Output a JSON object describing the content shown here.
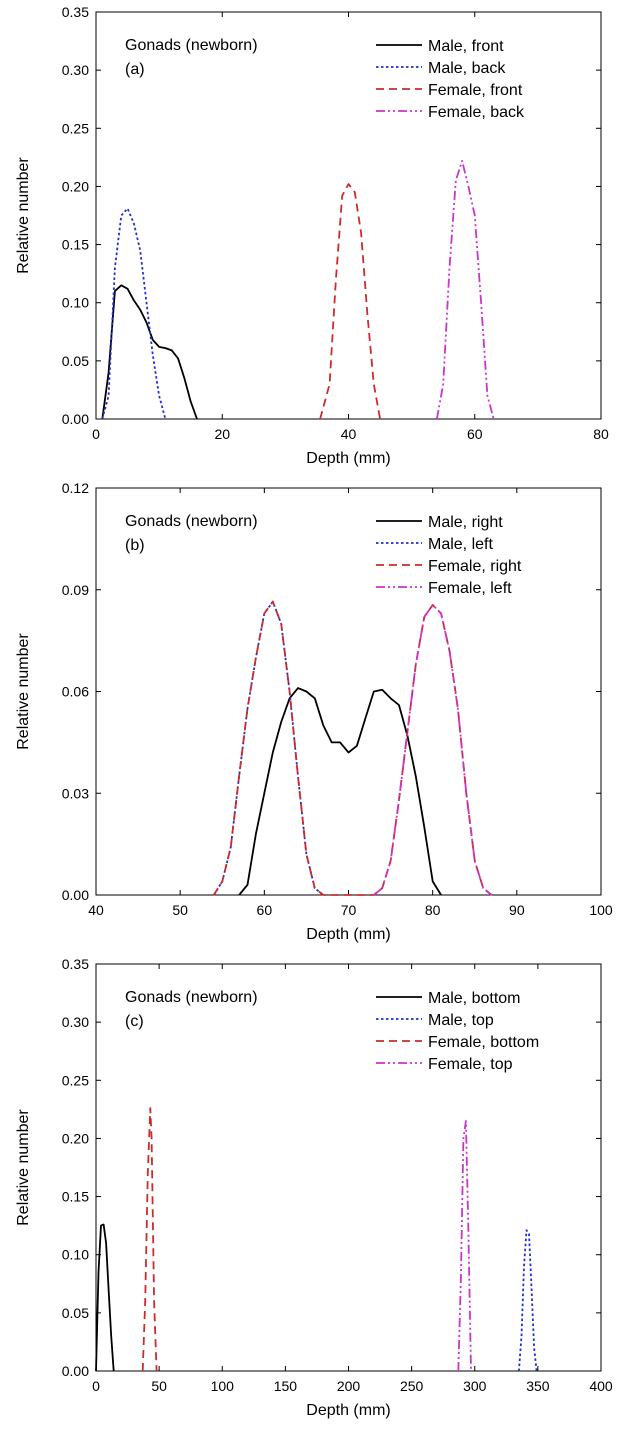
{
  "chart_data": [
    {
      "type": "line",
      "xlabel": "Depth (mm)",
      "ylabel": "Relative number",
      "xlim": [
        0,
        80
      ],
      "ylim": [
        0,
        0.35
      ],
      "xticks": [
        "0",
        "20",
        "40",
        "60",
        "80"
      ],
      "yticks": [
        "0.00",
        "0.05",
        "0.10",
        "0.15",
        "0.20",
        "0.25",
        "0.30",
        "0.35"
      ],
      "annotation_title": "Gonads (newborn)",
      "annotation_panel": "(a)",
      "legend_position": "top-right",
      "series": [
        {
          "name": "Male, front",
          "color": "#000000",
          "dash": "solid",
          "x": [
            1,
            2,
            3,
            4,
            5,
            6,
            7,
            8,
            9,
            10,
            11,
            12,
            13,
            14,
            15,
            16
          ],
          "y": [
            0.0,
            0.04,
            0.11,
            0.115,
            0.112,
            0.102,
            0.094,
            0.083,
            0.068,
            0.062,
            0.061,
            0.059,
            0.052,
            0.035,
            0.015,
            0.0
          ]
        },
        {
          "name": "Male, back",
          "color": "#1f2fd0",
          "dash": "dot",
          "x": [
            1,
            2,
            3,
            4,
            5,
            6,
            7,
            8,
            9,
            10,
            11
          ],
          "y": [
            0.0,
            0.02,
            0.13,
            0.175,
            0.181,
            0.168,
            0.145,
            0.1,
            0.055,
            0.02,
            0.0
          ]
        },
        {
          "name": "Female, front",
          "color": "#cc2b2b",
          "dash": "dash",
          "x": [
            35.5,
            37,
            38,
            39,
            40,
            41,
            42,
            43,
            44,
            45
          ],
          "y": [
            0.0,
            0.03,
            0.12,
            0.192,
            0.202,
            0.195,
            0.16,
            0.09,
            0.03,
            0.0
          ]
        },
        {
          "name": "Female, back",
          "color": "#cc33cc",
          "dash": "dashdotdot",
          "x": [
            54,
            55,
            56,
            57,
            58,
            59,
            60,
            61,
            62,
            63
          ],
          "y": [
            0.0,
            0.03,
            0.13,
            0.205,
            0.222,
            0.2,
            0.175,
            0.1,
            0.02,
            0.0
          ]
        }
      ]
    },
    {
      "type": "line",
      "xlabel": "Depth (mm)",
      "ylabel": "Relative number",
      "xlim": [
        40,
        100
      ],
      "ylim": [
        0,
        0.12
      ],
      "xticks": [
        "40",
        "50",
        "60",
        "70",
        "80",
        "90",
        "100"
      ],
      "yticks": [
        "0.00",
        "0.03",
        "0.06",
        "0.09",
        "0.12"
      ],
      "annotation_title": "Gonads (newborn)",
      "annotation_panel": "(b)",
      "legend_position": "top-right",
      "series": [
        {
          "name": "Male, right",
          "color": "#000000",
          "dash": "solid",
          "x": [
            57,
            58,
            59,
            60,
            61,
            62,
            63,
            64,
            65,
            66,
            67,
            68,
            69,
            70,
            71,
            72,
            73,
            74,
            75,
            76,
            77,
            78,
            79,
            80,
            81
          ],
          "y": [
            0.0,
            0.003,
            0.018,
            0.03,
            0.042,
            0.051,
            0.058,
            0.061,
            0.06,
            0.058,
            0.05,
            0.045,
            0.045,
            0.042,
            0.044,
            0.052,
            0.06,
            0.0605,
            0.058,
            0.056,
            0.047,
            0.035,
            0.02,
            0.004,
            0.0
          ]
        },
        {
          "name": "Male, left",
          "color": "#1f2fd0",
          "dash": "dot",
          "x": [
            54,
            55,
            56,
            57,
            58,
            59,
            60,
            61,
            62,
            63,
            64,
            65,
            66,
            67
          ],
          "y": [
            0.0,
            0.004,
            0.014,
            0.035,
            0.055,
            0.07,
            0.083,
            0.0865,
            0.08,
            0.06,
            0.035,
            0.012,
            0.002,
            0.0
          ]
        },
        {
          "name": "Female, right",
          "color": "#cc2b2b",
          "dash": "dash",
          "x": [
            54,
            55,
            56,
            57,
            58,
            59,
            60,
            61,
            62,
            63,
            64,
            65,
            66,
            67,
            73,
            74,
            75,
            76,
            77,
            78,
            79,
            80,
            81,
            82,
            83,
            84,
            85,
            86,
            87
          ],
          "y": [
            0.0,
            0.004,
            0.014,
            0.035,
            0.055,
            0.07,
            0.083,
            0.0865,
            0.08,
            0.06,
            0.035,
            0.012,
            0.002,
            0.0,
            0.0,
            0.002,
            0.01,
            0.028,
            0.048,
            0.068,
            0.082,
            0.0855,
            0.083,
            0.072,
            0.055,
            0.03,
            0.01,
            0.002,
            0.0
          ]
        },
        {
          "name": "Female, left",
          "color": "#cc33cc",
          "dash": "dashdotdot",
          "x": [
            73,
            74,
            75,
            76,
            77,
            78,
            79,
            80,
            81,
            82,
            83,
            84,
            85,
            86,
            87
          ],
          "y": [
            0.0,
            0.002,
            0.01,
            0.028,
            0.048,
            0.068,
            0.082,
            0.0855,
            0.083,
            0.072,
            0.055,
            0.03,
            0.01,
            0.002,
            0.0
          ]
        }
      ]
    },
    {
      "type": "line",
      "xlabel": "Depth (mm)",
      "ylabel": "Relative number",
      "xlim": [
        0,
        400
      ],
      "ylim": [
        0,
        0.35
      ],
      "xticks": [
        "0",
        "50",
        "100",
        "150",
        "200",
        "250",
        "300",
        "350",
        "400"
      ],
      "yticks": [
        "0.00",
        "0.05",
        "0.10",
        "0.15",
        "0.20",
        "0.25",
        "0.30",
        "0.35"
      ],
      "annotation_title": "Gonads (newborn)",
      "annotation_panel": "(c)",
      "legend_position": "top-right",
      "series": [
        {
          "name": "Male, bottom",
          "color": "#000000",
          "dash": "solid",
          "x": [
            0,
            2,
            4,
            6,
            8,
            10,
            12,
            14
          ],
          "y": [
            0.0,
            0.085,
            0.125,
            0.126,
            0.11,
            0.07,
            0.03,
            0.0
          ]
        },
        {
          "name": "Male, top",
          "color": "#1f2fd0",
          "dash": "dot",
          "x": [
            335,
            337,
            339,
            341,
            343,
            345,
            347,
            349
          ],
          "y": [
            0.0,
            0.03,
            0.09,
            0.121,
            0.118,
            0.07,
            0.02,
            0.0
          ]
        },
        {
          "name": "Female, bottom",
          "color": "#cc2b2b",
          "dash": "dash",
          "x": [
            37,
            39,
            41,
            43,
            44,
            46,
            48
          ],
          "y": [
            0.0,
            0.06,
            0.17,
            0.226,
            0.2,
            0.06,
            0.0
          ]
        },
        {
          "name": "Female, top",
          "color": "#cc33cc",
          "dash": "dashdotdot",
          "x": [
            287,
            289,
            291,
            293,
            295,
            297
          ],
          "y": [
            0.0,
            0.08,
            0.2,
            0.215,
            0.12,
            0.0
          ]
        }
      ]
    }
  ]
}
